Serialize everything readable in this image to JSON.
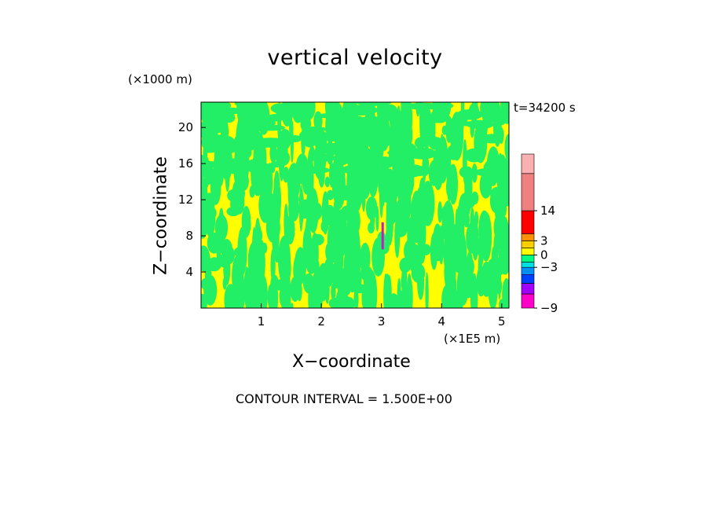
{
  "title": "vertical velocity",
  "z_unit": "(×1000 m)",
  "time_label": "t=34200 s",
  "x_unit": "(×1E5 m)",
  "xlabel": "X−coordinate",
  "ylabel": "Z−coordinate",
  "contour_interval": "CONTOUR INTERVAL = 1.500E+00",
  "chart_data": {
    "type": "heatmap",
    "title": "vertical velocity",
    "xlabel": "X-coordinate",
    "ylabel": "Z-coordinate",
    "x_unit": "x1E5 m",
    "z_unit": "x1000 m",
    "xlim": [
      0,
      5.12
    ],
    "ylim": [
      0,
      22.8
    ],
    "x_ticks": [
      1,
      2,
      3,
      4,
      5
    ],
    "y_ticks": [
      4,
      8,
      12,
      16,
      20
    ],
    "time": "t=34200 s",
    "contour_interval": 1.5,
    "colorbar": {
      "levels": [
        -9,
        -7.5,
        -6,
        -4.5,
        -3,
        -1.5,
        0,
        1.5,
        3,
        4.5,
        14,
        18
      ],
      "labels": [
        "14",
        "3",
        "0",
        "−3",
        "−9"
      ],
      "label_values": [
        14,
        3,
        0,
        -3,
        -9
      ],
      "colors": [
        "#ff00c8",
        "#a000ff",
        "#0040ff",
        "#0090ff",
        "#00e0e0",
        "#00ff80",
        "#ffff00",
        "#ffd000",
        "#ff9000",
        "#ff0000",
        "#f08080",
        "#f8b0b0"
      ]
    },
    "background_color": "#ffff00",
    "feature_color": "#22ee66",
    "updraft_marker": {
      "x": 3.02,
      "z_range": [
        6.5,
        9.5
      ],
      "color": "#c020c0"
    }
  }
}
